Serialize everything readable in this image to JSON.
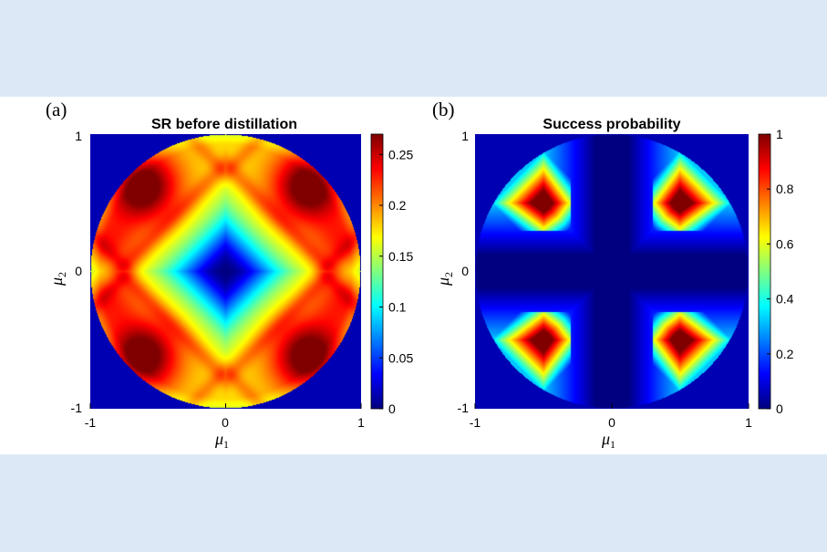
{
  "background_color": "#dce8f5",
  "colormap": "jet",
  "chart_data": [
    {
      "type": "heatmap",
      "panel_label": "(a)",
      "title": "SR  before distillation",
      "xlabel": "μ1",
      "ylabel": "μ2",
      "xlim": [
        -1,
        1
      ],
      "ylim": [
        -1,
        1
      ],
      "xticks": [
        "-1",
        "0",
        "1"
      ],
      "yticks": [
        "1",
        "0",
        "-1"
      ],
      "colorbar_range": [
        0,
        0.27
      ],
      "colorbar_ticks": [
        "0.25",
        "0.2",
        "0.15",
        "0.1",
        "0.05",
        "0"
      ],
      "domain": "unit disk (outside filled with minimum value)",
      "features": {
        "center_value": 0.0,
        "peak_value": 0.27,
        "peak_locations": [
          [
            0.6,
            0.6
          ],
          [
            -0.6,
            0.6
          ],
          [
            0.6,
            -0.6
          ],
          [
            -0.6,
            -0.6
          ]
        ],
        "ridge_value": 0.17,
        "ridge_shape": "lines |μ1| + |μ2| ≈ 0.8 and |μ1| − |μ2| ≈ ±0.7"
      }
    },
    {
      "type": "heatmap",
      "panel_label": "(b)",
      "title": "Success probability",
      "xlabel": "μ1",
      "ylabel": "μ2",
      "xlim": [
        -1,
        1
      ],
      "ylim": [
        -1,
        1
      ],
      "xticks": [
        "-1",
        "0",
        "1"
      ],
      "yticks": [
        "1",
        "0",
        "-1"
      ],
      "colorbar_range": [
        0,
        1
      ],
      "colorbar_ticks": [
        "1",
        "0.8",
        "0.6",
        "0.4",
        "0.2",
        "0"
      ],
      "domain": "unit disk (outside filled with minimum value)",
      "features": {
        "min_band_halfwidth": 0.12,
        "peak_value": 1.0,
        "peak_locations": [
          [
            0.5,
            0.5
          ],
          [
            -0.5,
            0.5
          ],
          [
            0.5,
            -0.5
          ],
          [
            -0.5,
            -0.5
          ]
        ]
      }
    }
  ]
}
